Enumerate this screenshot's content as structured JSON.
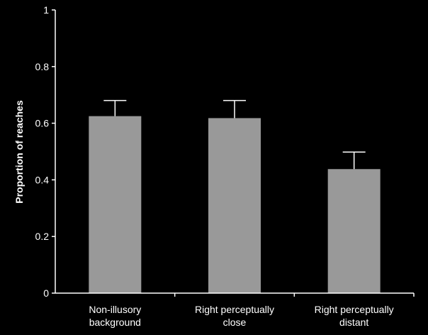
{
  "chart_data": {
    "type": "bar",
    "title": "",
    "xlabel": "",
    "ylabel": "Proportion of reaches",
    "ylim": [
      0,
      1
    ],
    "y_ticks": [
      "0",
      "0.2",
      "0.4",
      "0.6",
      "0.8",
      "1"
    ],
    "y_tick_values": [
      0,
      0.2,
      0.4,
      0.6,
      0.8,
      1
    ],
    "categories": [
      [
        "Non-illusory",
        "background"
      ],
      [
        "Right perceptually",
        "close"
      ],
      [
        "Right perceptually",
        "distant"
      ]
    ],
    "values": [
      0.625,
      0.618,
      0.438
    ],
    "error_upper": [
      0.68,
      0.68,
      0.498
    ],
    "grid": false,
    "legend": "none"
  },
  "colors": {
    "background": "#000000",
    "bar": "#999999",
    "axis": "#ffffff",
    "error_bar": "#ffffff",
    "text": "#ffffff"
  }
}
